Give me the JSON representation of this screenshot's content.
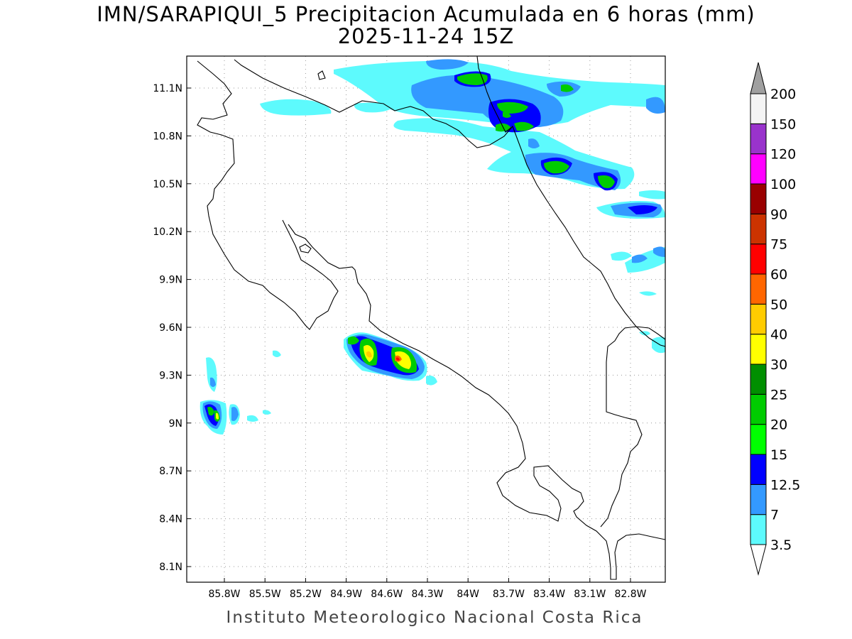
{
  "title": {
    "line1": "IMN/SARAPIQUI_5 Precipitacion Acumulada en 6 horas (mm)",
    "line2": "2025-11-24 15Z"
  },
  "footer": "Instituto Meteorologico Nacional Costa Rica",
  "map": {
    "x_ticks": [
      "85.8W",
      "85.5W",
      "85.2W",
      "84.9W",
      "84.6W",
      "84.3W",
      "84W",
      "83.7W",
      "83.4W",
      "83.1W",
      "82.8W"
    ],
    "y_ticks": [
      "11.1N",
      "10.8N",
      "10.5N",
      "10.2N",
      "9.9N",
      "9.6N",
      "9.3N",
      "9N",
      "8.7N",
      "8.4N",
      "8.1N"
    ],
    "grid": "dotted"
  },
  "colorbar": {
    "labels": [
      "3.5",
      "7",
      "12.5",
      "15",
      "20",
      "25",
      "30",
      "40",
      "50",
      "60",
      "75",
      "90",
      "100",
      "120",
      "150",
      "200"
    ],
    "colors": [
      "#ffffff",
      "#5dfafd",
      "#3399ff",
      "#0000ff",
      "#00ff00",
      "#00cc00",
      "#008f00",
      "#ffff00",
      "#ffcc00",
      "#ff6600",
      "#ff0000",
      "#cc3300",
      "#990000",
      "#ff00ff",
      "#9933cc",
      "#f4f4f4",
      "#a0a0a0"
    ]
  }
}
